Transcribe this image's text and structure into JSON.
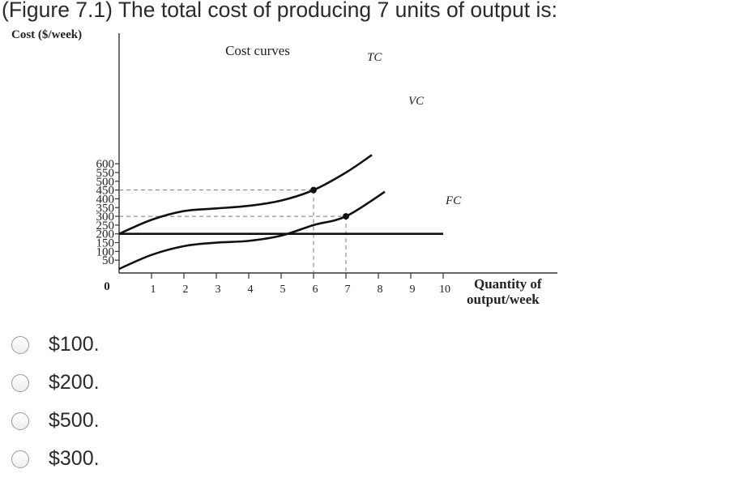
{
  "question": {
    "text": "(Figure 7.1) The total cost of producing 7 units of output is:"
  },
  "options": [
    {
      "label": "$100."
    },
    {
      "label": "$200."
    },
    {
      "label": "$500."
    },
    {
      "label": "$300."
    }
  ],
  "chart_data": {
    "type": "line",
    "title": "Cost curves",
    "ylabel": "Cost ($/week)",
    "xlabel": "Quantity of output/week",
    "xlim": [
      0,
      10
    ],
    "ylim": [
      0,
      600
    ],
    "x_ticks": [
      "1",
      "2",
      "3",
      "4",
      "5",
      "6",
      "7",
      "8",
      "9",
      "10"
    ],
    "y_ticks": [
      "600",
      "550",
      "500",
      "450",
      "400",
      "350",
      "300",
      "250",
      "200",
      "150",
      "100",
      "50"
    ],
    "origin_label": "0",
    "series": [
      {
        "name": "TC",
        "x": [
          0,
          1,
          2,
          3,
          4,
          5,
          6,
          7,
          7.8
        ],
        "y": [
          200,
          280,
          330,
          345,
          360,
          390,
          450,
          550,
          650
        ]
      },
      {
        "name": "VC",
        "x": [
          0,
          1,
          2,
          3,
          4,
          5,
          6,
          7,
          8.2
        ],
        "y": [
          0,
          80,
          130,
          150,
          160,
          190,
          250,
          300,
          440
        ]
      },
      {
        "name": "FC",
        "x": [
          0,
          10
        ],
        "y": [
          200,
          200
        ]
      }
    ],
    "highlighted_points": [
      {
        "series": "TC",
        "x": 6,
        "y": 450
      },
      {
        "series": "VC",
        "x": 7,
        "y": 300
      }
    ],
    "grid": false
  }
}
